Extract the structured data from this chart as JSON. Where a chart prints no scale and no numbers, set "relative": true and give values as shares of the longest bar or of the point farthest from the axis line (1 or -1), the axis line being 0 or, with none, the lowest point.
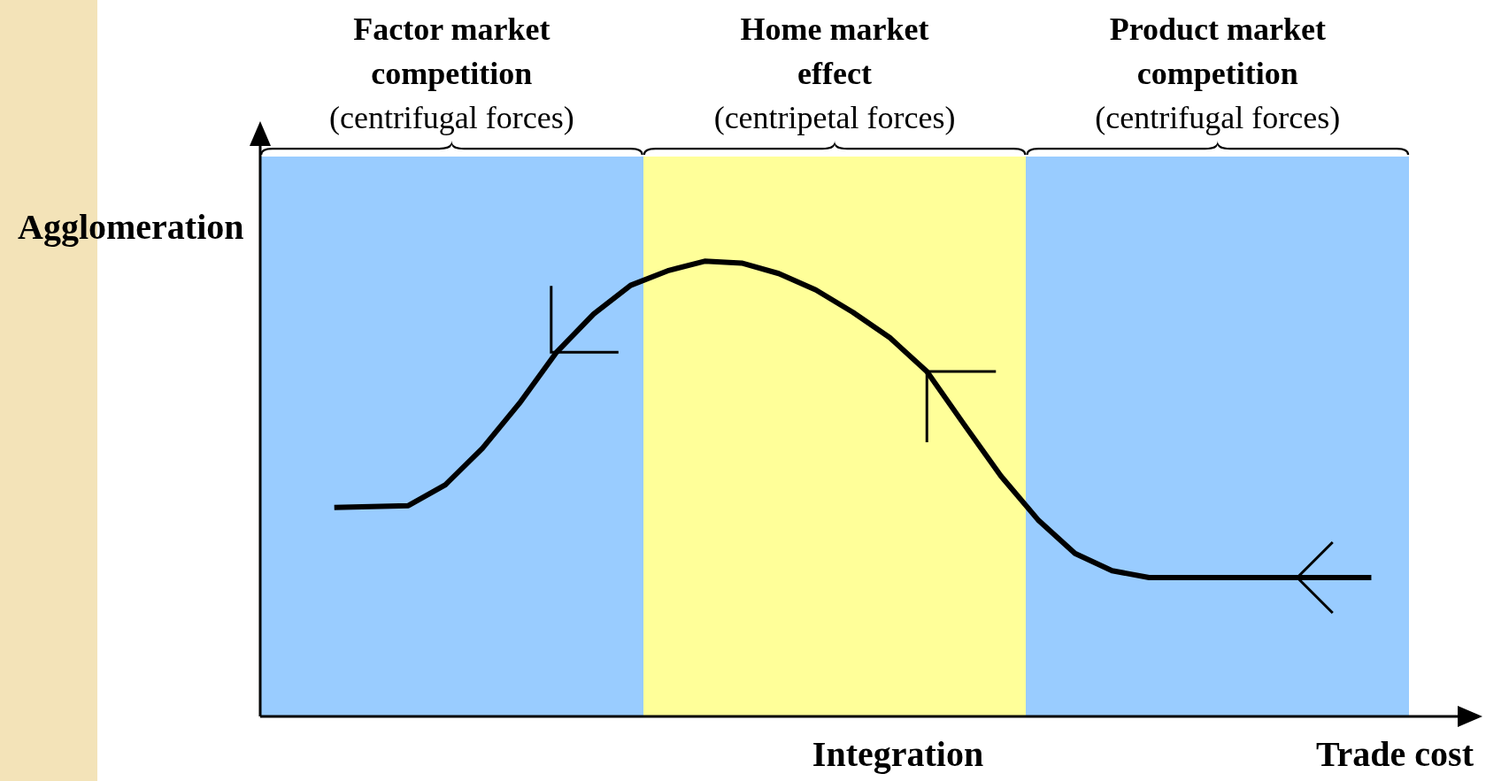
{
  "chart_data": {
    "type": "line",
    "relative": true,
    "ylabel": "Agglomeration",
    "xlabel": "Trade cost",
    "annotations": [
      "Factor market\ncompetition\n(centrifugal forces)",
      "Home market\neffect\n(centripetal forces)",
      "Product market\ncompetition\n(centrifugal forces)",
      "Integration"
    ],
    "legend": false,
    "marker": "none",
    "line_style": "solid",
    "categories": [
      null,
      null,
      null,
      null,
      null,
      null,
      null,
      null,
      null,
      null,
      null,
      null,
      null,
      null,
      null,
      null,
      null,
      null,
      null,
      null,
      null,
      null,
      null,
      null,
      null,
      null,
      null,
      null,
      null,
      null,
      null,
      null,
      null,
      null
    ],
    "series": [
      {
        "color": "#000000",
        "values": [
          null,
          null,
          0.459,
          0.461,
          0.463,
          0.509,
          0.589,
          0.688,
          0.8,
          0.884,
          0.947,
          0.979,
          1.0,
          0.996,
          0.973,
          0.937,
          0.888,
          0.832,
          0.758,
          0.642,
          0.528,
          0.432,
          0.358,
          0.32,
          0.305,
          0.305,
          0.305,
          0.305,
          0.305,
          0.305,
          0.305,
          null,
          null,
          null
        ]
      }
    ]
  }
}
